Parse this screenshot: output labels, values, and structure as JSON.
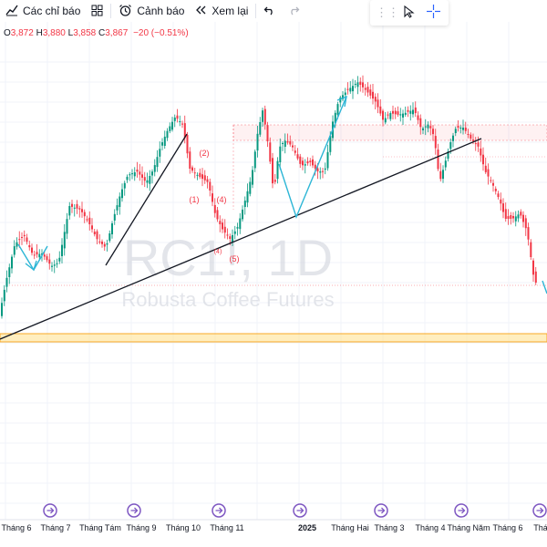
{
  "toolbar": {
    "indicators_label": "Các chỉ báo",
    "alert_label": "Cảnh báo",
    "replay_label": "Xem lại"
  },
  "ohlc": {
    "o_label": "O",
    "o": "3,872",
    "h_label": "H",
    "h": "3,880",
    "l_label": "L",
    "l": "3,858",
    "c_label": "C",
    "c": "3,867",
    "change": "−20 (−0.51%)"
  },
  "watermark": {
    "symbol": "RC1!, 1D",
    "name": "Robusta Coffee Futures"
  },
  "wave_labels": [
    "(1)",
    "(2)",
    "(4)",
    "(4)",
    "(5)"
  ],
  "x_axis_labels": [
    "Tháng 6",
    "Tháng 7",
    "Tháng Tám",
    "Tháng 9",
    "Tháng 10",
    "Tháng 11",
    "2025",
    "Tháng Hai",
    "Tháng 3",
    "Tháng 4",
    "Tháng Năm",
    "Tháng 6",
    "Thá"
  ],
  "colors": {
    "up": "#089981",
    "down": "#f23645",
    "drawing_arrow": "#2db6d6",
    "trendline": "#131722",
    "zone": "#f9a825"
  },
  "icons": {
    "indicators": "chart-line-icon",
    "templates": "grid-icon",
    "alert": "alarm-clock-icon",
    "replay": "rewind-icon",
    "undo": "undo-icon",
    "redo": "redo-icon",
    "cursor": "cursor-icon",
    "crosshair": "crosshair-icon",
    "event": "event-marker-icon"
  }
}
